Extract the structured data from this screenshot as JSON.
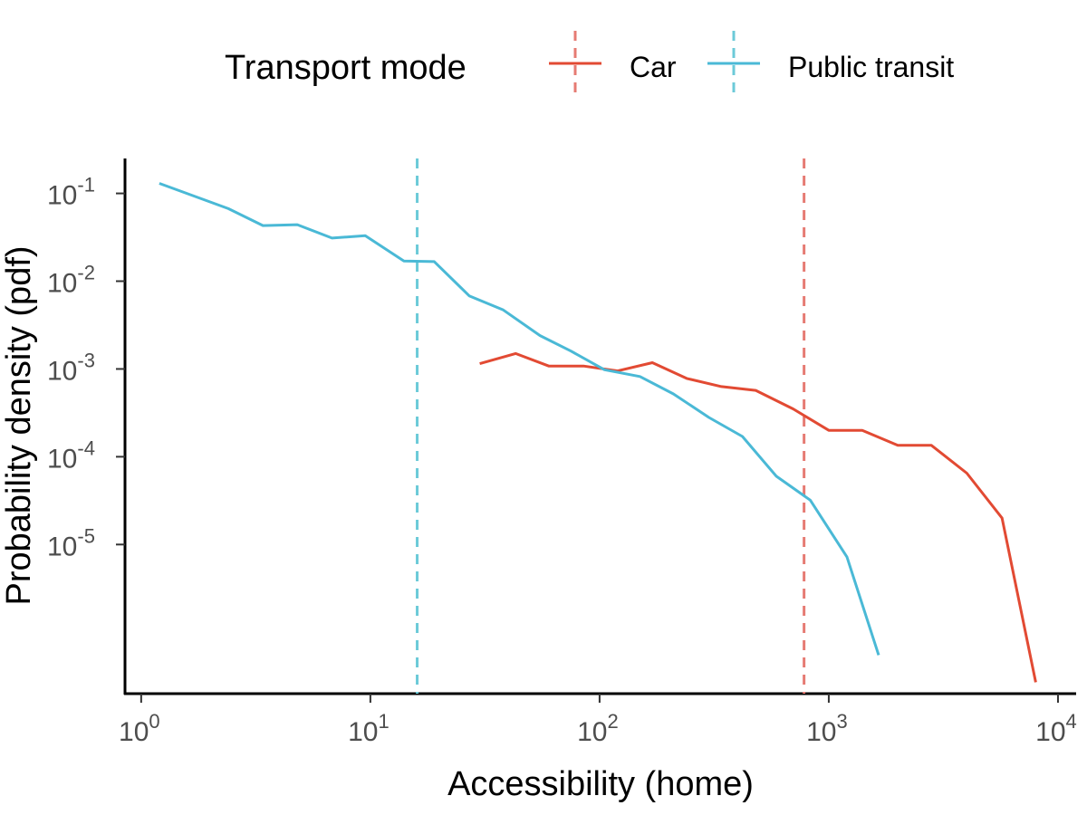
{
  "chart_data": {
    "type": "line",
    "title": "",
    "xlabel": "Accessibility (home)",
    "ylabel": "Probability density (pdf)",
    "x_scale": "log10",
    "y_scale": "log10",
    "xlim": [
      0.85,
      12000
    ],
    "ylim": [
      2e-07,
      0.25
    ],
    "x_ticks": [
      {
        "value": 1,
        "label": "10",
        "exp": "0"
      },
      {
        "value": 10,
        "label": "10",
        "exp": "1"
      },
      {
        "value": 100,
        "label": "10",
        "exp": "2"
      },
      {
        "value": 1000,
        "label": "10",
        "exp": "3"
      },
      {
        "value": 10000,
        "label": "10",
        "exp": "4"
      }
    ],
    "y_ticks": [
      {
        "value": 0.1,
        "label": "10",
        "exp": "-1"
      },
      {
        "value": 0.01,
        "label": "10",
        "exp": "-2"
      },
      {
        "value": 0.001,
        "label": "10",
        "exp": "-3"
      },
      {
        "value": 0.0001,
        "label": "10",
        "exp": "-4"
      },
      {
        "value": 1e-05,
        "label": "10",
        "exp": "-5"
      }
    ],
    "grid": false,
    "legend": {
      "title": "Transport mode",
      "placement": "top"
    },
    "series": [
      {
        "name": "Car",
        "color": "#e24a33",
        "mean_line_color": "#e67b73",
        "mean_x": 780,
        "points": [
          [
            30,
            0.00115
          ],
          [
            43,
            0.0015
          ],
          [
            60,
            0.00108
          ],
          [
            85,
            0.00108
          ],
          [
            120,
            0.00095
          ],
          [
            170,
            0.00118
          ],
          [
            240,
            0.00078
          ],
          [
            340,
            0.00063
          ],
          [
            480,
            0.00057
          ],
          [
            700,
            0.00035
          ],
          [
            1000,
            0.0002
          ],
          [
            1400,
            0.0002
          ],
          [
            2000,
            0.000135
          ],
          [
            2800,
            0.000135
          ],
          [
            4000,
            6.5e-05
          ],
          [
            5700,
            2e-05
          ],
          [
            8000,
            2.7e-07
          ]
        ]
      },
      {
        "name": "Public transit",
        "color": "#4ab9d6",
        "mean_line_color": "#6ccad8",
        "mean_x": 16,
        "points": [
          [
            1.2,
            0.13
          ],
          [
            2.4,
            0.067
          ],
          [
            3.4,
            0.043
          ],
          [
            4.8,
            0.044
          ],
          [
            6.8,
            0.031
          ],
          [
            9.5,
            0.033
          ],
          [
            14,
            0.017
          ],
          [
            19,
            0.0167
          ],
          [
            27,
            0.0068
          ],
          [
            38,
            0.0047
          ],
          [
            55,
            0.0024
          ],
          [
            75,
            0.0016
          ],
          [
            105,
            0.00098
          ],
          [
            150,
            0.00082
          ],
          [
            210,
            0.00052
          ],
          [
            300,
            0.00028
          ],
          [
            420,
            0.00017
          ],
          [
            590,
            6e-05
          ],
          [
            830,
            3.2e-05
          ],
          [
            1200,
            7.2e-06
          ],
          [
            1650,
            5.5e-07
          ]
        ]
      }
    ]
  }
}
